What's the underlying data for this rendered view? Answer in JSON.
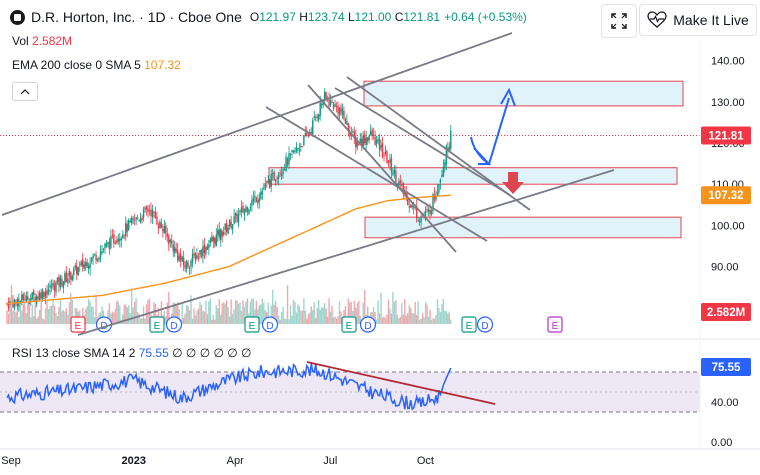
{
  "header": {
    "title": "D.R. Horton, Inc. · 1D · Cboe One",
    "o_label": "O",
    "o_value": "121.97",
    "h_label": "H",
    "h_value": "123.74",
    "l_label": "L",
    "l_value": "121.00",
    "c_label": "C",
    "c_value": "121.81",
    "change": "+0.64 (+0.53%)"
  },
  "legend": {
    "vol_label": "Vol",
    "vol_value": "2.582M",
    "ema_label": "EMA 200 close 0 SMA 5",
    "ema_value": "107.32",
    "rsi_label": "RSI 13 close SMA 14 2",
    "rsi_value": "75.55",
    "rsi_rest": "∅ ∅ ∅ ∅ ∅ ∅"
  },
  "buttons": {
    "fullscreen_icon": "fullscreen-icon",
    "live_label": "Make It Live",
    "live_icon": "heart-pulse-icon",
    "collapse_icon": "chevron-up-icon"
  },
  "colors": {
    "up": "#089981",
    "down": "#f23645",
    "ema": "#f7931a",
    "rsi": "#2962ff",
    "trend": "#787b86",
    "zone_fill": "#e1f3fa",
    "zone_border": "#e0464f",
    "rsi_trend": "#b22833",
    "rsi_band": "#ede7f6",
    "arrow_blue": "#2962ff",
    "arrow_red": "#e0464f"
  },
  "chart_data": [
    {
      "type": "candlestick",
      "symbol": "D.R. Horton, Inc.",
      "interval": "1D",
      "exchange": "Cboe One",
      "x_ticks": [
        "Sep",
        "2023",
        "Apr",
        "Jul",
        "Oct"
      ],
      "y_ticks": [
        90.0,
        100.0,
        110.0,
        120.0,
        130.0,
        140.0
      ],
      "ylim": [
        84,
        148
      ],
      "price_label": 121.81,
      "ema_label": 107.32,
      "vol_label": "2.582M",
      "close_points": [
        {
          "m": 0,
          "v": 81
        },
        {
          "m": 1,
          "v": 83
        },
        {
          "m": 2,
          "v": 88
        },
        {
          "m": 3,
          "v": 94
        },
        {
          "m": 4,
          "v": 101
        },
        {
          "m": 4.5,
          "v": 104
        },
        {
          "m": 5,
          "v": 98
        },
        {
          "m": 5.6,
          "v": 90
        },
        {
          "m": 6.3,
          "v": 95
        },
        {
          "m": 7,
          "v": 100
        },
        {
          "m": 8,
          "v": 108
        },
        {
          "m": 9,
          "v": 117
        },
        {
          "m": 9.5,
          "v": 122
        },
        {
          "m": 10,
          "v": 131
        },
        {
          "m": 10.5,
          "v": 128
        },
        {
          "m": 11,
          "v": 120
        },
        {
          "m": 11.5,
          "v": 122
        },
        {
          "m": 12,
          "v": 116
        },
        {
          "m": 12.5,
          "v": 108
        },
        {
          "m": 13,
          "v": 102
        },
        {
          "m": 13.3,
          "v": 103
        },
        {
          "m": 13.6,
          "v": 110
        },
        {
          "m": 14,
          "v": 122
        }
      ],
      "ema_points": [
        {
          "m": 0,
          "v": 81
        },
        {
          "m": 3,
          "v": 83
        },
        {
          "m": 5,
          "v": 86
        },
        {
          "m": 7,
          "v": 90
        },
        {
          "m": 9,
          "v": 97
        },
        {
          "m": 11,
          "v": 104
        },
        {
          "m": 12,
          "v": 106
        },
        {
          "m": 13,
          "v": 106.8
        },
        {
          "m": 14,
          "v": 107.32
        }
      ],
      "zones": [
        {
          "from": 129,
          "to": 135
        },
        {
          "from": 110,
          "to": 114
        },
        {
          "from": 97,
          "to": 102
        }
      ],
      "earnings_markers": [
        "E",
        "D",
        "E",
        "D",
        "E",
        "D",
        "E",
        "D",
        "E",
        "D",
        "E"
      ]
    },
    {
      "type": "line",
      "name": "RSI 13 close SMA 14 2",
      "y_ticks": [
        0.0,
        40.0,
        75.55
      ],
      "rsi_value": 75.55
    }
  ]
}
